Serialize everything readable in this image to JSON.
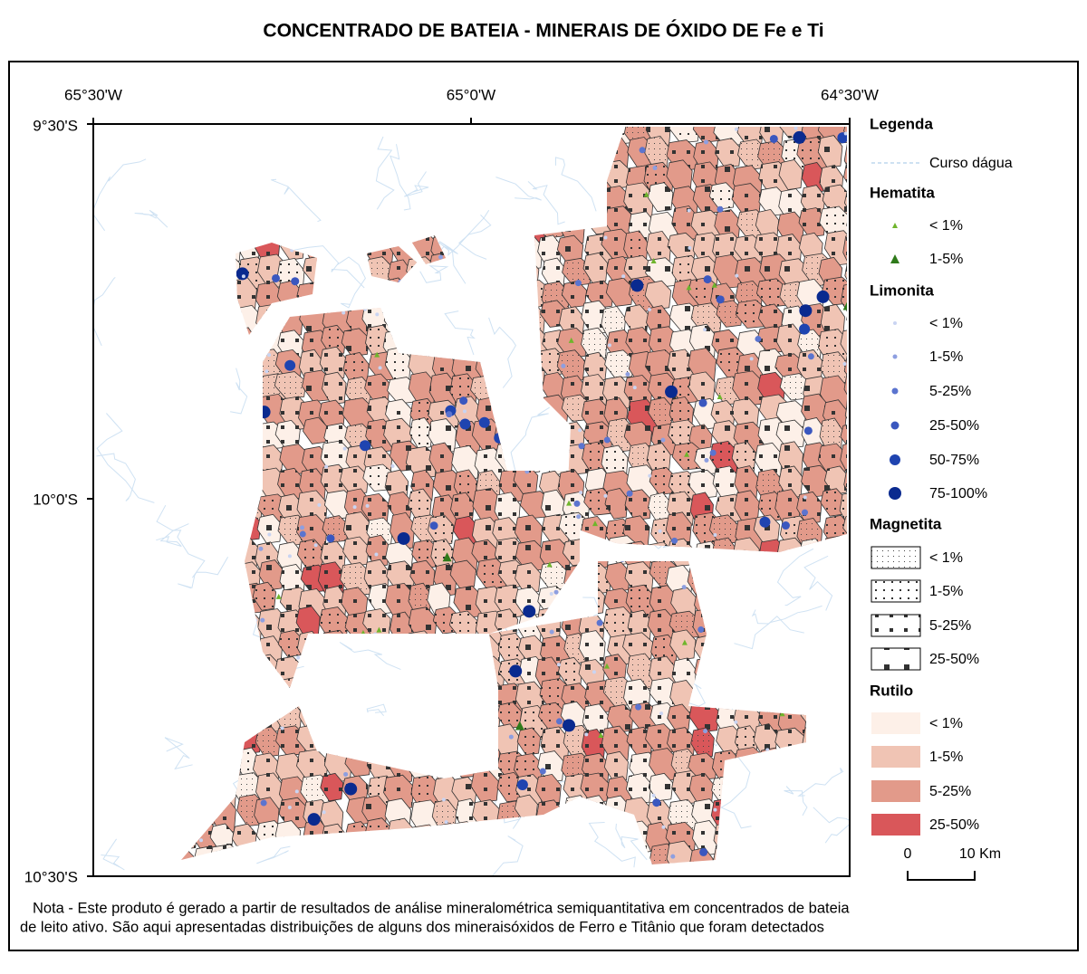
{
  "header": {
    "title": "CONCENTRADO DE BATEIA - MINERAIS DE ÓXIDO DE Fe e Ti"
  },
  "map": {
    "lon_labels": [
      "65°30'W",
      "65°0'W",
      "64°30'W"
    ],
    "lat_labels": [
      "9°30'S",
      "10°0'S",
      "10°30'S"
    ]
  },
  "legend": {
    "title": "Legenda",
    "stream": "Curso dágua",
    "groups": [
      {
        "title": "Hematita",
        "items": [
          "< 1%",
          "1-5%"
        ]
      },
      {
        "title": "Limonita",
        "items": [
          "< 1%",
          "1-5%",
          "5-25%",
          "25-50%",
          "50-75%",
          "75-100%"
        ]
      },
      {
        "title": "Magnetita",
        "items": [
          "< 1%",
          "1-5%",
          "5-25%",
          "25-50%"
        ]
      },
      {
        "title": "Rutilo",
        "items": [
          "< 1%",
          "1-5%",
          "5-25%",
          "25-50%"
        ]
      }
    ]
  },
  "scale": {
    "labels": [
      "0",
      "10 Km"
    ]
  },
  "note": {
    "lines": [
      "Nota - Este produto é gerado a partir de resultados de análise mineralométrica semiquantitativa em concentrados de bateia",
      "de leito ativo. São aqui apresentadas distribuições de alguns dos mineraisóxidos de Ferro e Titânio que foram detectados"
    ]
  }
}
